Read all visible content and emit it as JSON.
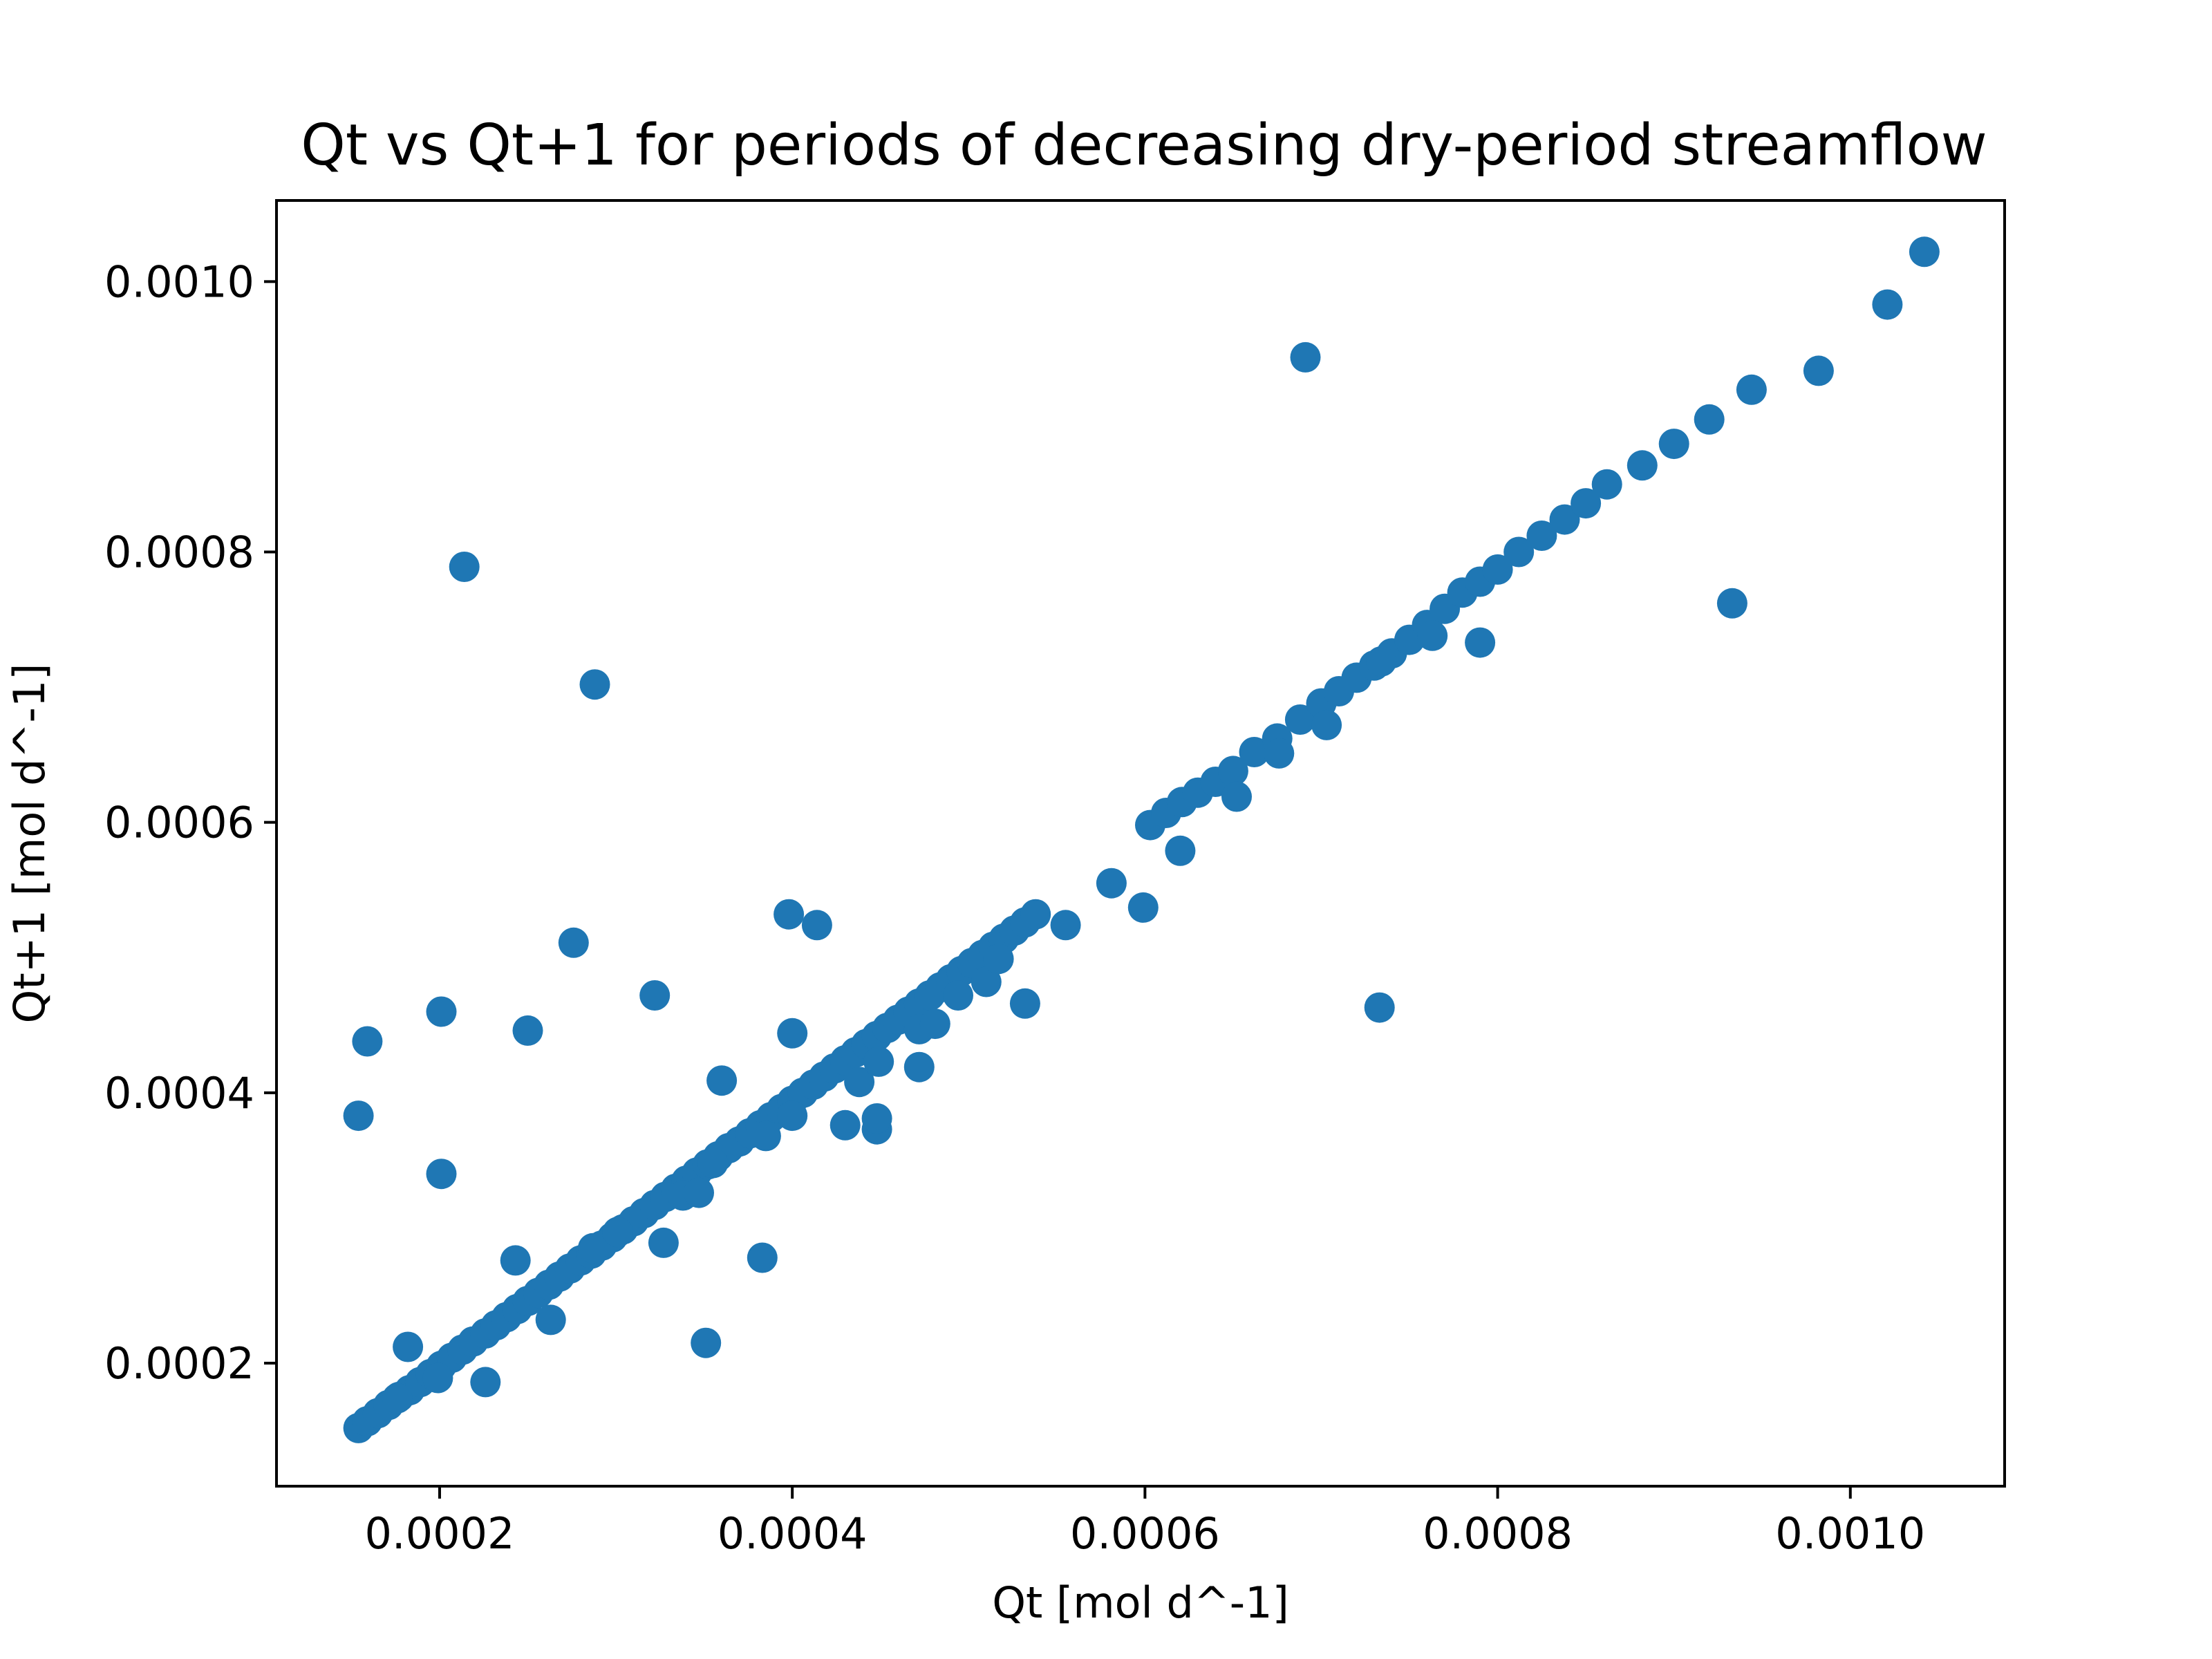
{
  "chart_data": {
    "type": "scatter",
    "title": "Qt vs Qt+1 for periods of decreasing dry-period streamflow",
    "xlabel": "Qt [mol d^-1]",
    "ylabel": "Qt+1 [mol d^-1]",
    "xlim": [
      0.0001075,
      0.0010875
    ],
    "ylim": [
      0.000109,
      0.00106
    ],
    "xticks": [
      "0.0002",
      "0.0004",
      "0.0006",
      "0.0008",
      "0.0010"
    ],
    "xtick_values": [
      0.0002,
      0.0004,
      0.0006,
      0.0008,
      0.001
    ],
    "yticks": [
      "0.0002",
      "0.0004",
      "0.0006",
      "0.0008",
      "0.0010"
    ],
    "ytick_values": [
      0.0002,
      0.0004,
      0.0006,
      0.0008,
      0.001
    ],
    "grid": false,
    "legend": "none",
    "marker_color": "#1f77b4",
    "series": [
      {
        "points": [
          [
            0.000154,
            0.000152
          ],
          [
            0.000159,
            0.000157
          ],
          [
            0.000165,
            0.000163
          ],
          [
            0.000171,
            0.000169
          ],
          [
            0.000177,
            0.000175
          ],
          [
            0.000183,
            0.00018
          ],
          [
            0.000189,
            0.000186
          ],
          [
            0.000195,
            0.000192
          ],
          [
            0.000201,
            0.000198
          ],
          [
            0.000207,
            0.000204
          ],
          [
            0.000213,
            0.00021
          ],
          [
            0.000219,
            0.000216
          ],
          [
            0.000226,
            0.000222
          ],
          [
            0.000232,
            0.000228
          ],
          [
            0.000238,
            0.000234
          ],
          [
            0.000244,
            0.00024
          ],
          [
            0.00025,
            0.000246
          ],
          [
            0.000256,
            0.000252
          ],
          [
            0.000262,
            0.000258
          ],
          [
            0.000268,
            0.000264
          ],
          [
            0.000274,
            0.00027
          ],
          [
            0.00028,
            0.000276
          ],
          [
            0.000286,
            0.000281
          ],
          [
            0.000292,
            0.000287
          ],
          [
            0.000298,
            0.000293
          ],
          [
            0.000304,
            0.000299
          ],
          [
            0.00031,
            0.000305
          ],
          [
            0.000316,
            0.000311
          ],
          [
            0.000322,
            0.000317
          ],
          [
            0.000328,
            0.000323
          ],
          [
            0.000334,
            0.000329
          ],
          [
            0.00034,
            0.000335
          ],
          [
            0.000346,
            0.000341
          ],
          [
            0.000352,
            0.000347
          ],
          [
            0.000358,
            0.000353
          ],
          [
            0.000364,
            0.000359
          ],
          [
            0.00037,
            0.000364
          ],
          [
            0.000376,
            0.00037
          ],
          [
            0.000382,
            0.000376
          ],
          [
            0.000388,
            0.000382
          ],
          [
            0.000394,
            0.000388
          ],
          [
            0.0004,
            0.000394
          ],
          [
            0.000406,
            0.0004
          ],
          [
            0.000412,
            0.000406
          ],
          [
            0.000418,
            0.000412
          ],
          [
            0.000424,
            0.000418
          ],
          [
            0.00043,
            0.000424
          ],
          [
            0.000436,
            0.00043
          ],
          [
            0.000442,
            0.000436
          ],
          [
            0.000448,
            0.000442
          ],
          [
            0.000454,
            0.000448
          ],
          [
            0.00046,
            0.000454
          ],
          [
            0.000466,
            0.00046
          ],
          [
            0.000472,
            0.000466
          ],
          [
            0.000478,
            0.000472
          ],
          [
            0.000484,
            0.000478
          ],
          [
            0.00049,
            0.000484
          ],
          [
            0.000496,
            0.00049
          ],
          [
            0.000502,
            0.000496
          ],
          [
            0.000508,
            0.000502
          ],
          [
            0.000514,
            0.000508
          ],
          [
            0.00052,
            0.000514
          ],
          [
            0.000526,
            0.00052
          ],
          [
            0.000532,
            0.000526
          ],
          [
            0.000538,
            0.000532
          ],
          [
            0.000603,
            0.000598
          ],
          [
            0.000612,
            0.000607
          ],
          [
            0.000621,
            0.000615
          ],
          [
            0.00063,
            0.000622
          ],
          [
            0.00064,
            0.00063
          ],
          [
            0.00065,
            0.000638
          ],
          [
            0.000662,
            0.000652
          ],
          [
            0.000675,
            0.000662
          ],
          [
            0.000688,
            0.000676
          ],
          [
            0.0007,
            0.000688
          ],
          [
            0.00071,
            0.000697
          ],
          [
            0.00072,
            0.000707
          ],
          [
            0.00073,
            0.000716
          ],
          [
            0.00074,
            0.000725
          ],
          [
            0.00075,
            0.000735
          ],
          [
            0.00076,
            0.000746
          ],
          [
            0.00077,
            0.000758
          ],
          [
            0.00078,
            0.00077
          ],
          [
            0.00079,
            0.000778
          ],
          [
            0.0008,
            0.000787
          ],
          [
            0.000812,
            0.0008
          ],
          [
            0.000825,
            0.000812
          ],
          [
            0.000838,
            0.000824
          ],
          [
            0.00085,
            0.000836
          ],
          [
            0.000862,
            0.00085
          ],
          [
            0.000882,
            0.000864
          ],
          [
            0.0009,
            0.00088
          ],
          [
            0.00092,
            0.000898
          ],
          [
            0.000944,
            0.00092
          ],
          [
            0.000982,
            0.000934
          ],
          [
            0.001021,
            0.000983
          ],
          [
            0.001042,
            0.001022
          ],
          [
            0.000176,
            0.000174
          ],
          [
            0.000199,
            0.000189
          ],
          [
            0.000226,
            0.000186
          ],
          [
            0.000182,
            0.000212
          ],
          [
            0.000243,
            0.000276
          ],
          [
            0.000263,
            0.000232
          ],
          [
            0.000287,
            0.000285
          ],
          [
            0.000301,
            0.000297
          ],
          [
            0.000327,
            0.000289
          ],
          [
            0.000338,
            0.000324
          ],
          [
            0.000347,
            0.000326
          ],
          [
            0.000355,
            0.000348
          ],
          [
            0.000385,
            0.000368
          ],
          [
            0.000383,
            0.000278
          ],
          [
            0.000351,
            0.000215
          ],
          [
            0.0004,
            0.000383
          ],
          [
            0.00043,
            0.000376
          ],
          [
            0.000448,
            0.000373
          ],
          [
            0.000448,
            0.000381
          ],
          [
            0.000438,
            0.000408
          ],
          [
            0.000449,
            0.000423
          ],
          [
            0.000472,
            0.000419
          ],
          [
            0.000472,
            0.000447
          ],
          [
            0.000481,
            0.000451
          ],
          [
            0.000494,
            0.000472
          ],
          [
            0.00051,
            0.000482
          ],
          [
            0.000517,
            0.000499
          ],
          [
            0.000532,
            0.000466
          ],
          [
            0.000555,
            0.000524
          ],
          [
            0.000581,
            0.000555
          ],
          [
            0.000599,
            0.000537
          ],
          [
            0.00062,
            0.000579
          ],
          [
            0.000652,
            0.000619
          ],
          [
            0.000676,
            0.000651
          ],
          [
            0.000703,
            0.000672
          ],
          [
            0.000734,
            0.000719
          ],
          [
            0.000763,
            0.000738
          ],
          [
            0.00079,
            0.000733
          ],
          [
            0.000933,
            0.000762
          ],
          [
            0.000733,
            0.000463
          ],
          [
            0.000691,
            0.000944
          ],
          [
            0.000154,
            0.000383
          ],
          [
            0.000159,
            0.000438
          ],
          [
            0.000201,
            0.00046
          ],
          [
            0.000201,
            0.00034
          ],
          [
            0.000214,
            0.000789
          ],
          [
            0.00025,
            0.000446
          ],
          [
            0.000276,
            0.000511
          ],
          [
            0.000288,
            0.000702
          ],
          [
            0.000322,
            0.000472
          ],
          [
            0.00036,
            0.000409
          ],
          [
            0.000398,
            0.000532
          ],
          [
            0.0004,
            0.000444
          ],
          [
            0.000414,
            0.000524
          ]
        ]
      }
    ]
  }
}
